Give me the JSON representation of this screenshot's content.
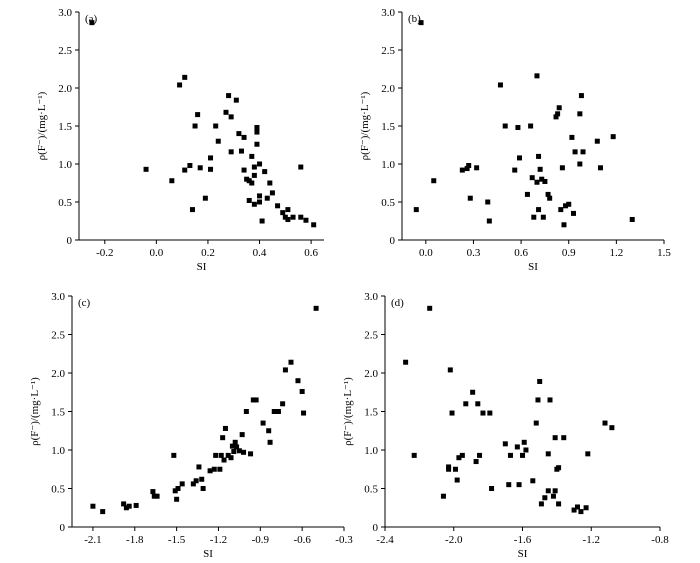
{
  "chart_data": [
    {
      "type": "scatter",
      "panel_label": "(a)",
      "xlabel": "SI",
      "ylabel": "ρ(F⁻)/(mg·L⁻¹)",
      "xlim": [
        -0.3,
        0.65
      ],
      "ylim": [
        0,
        3.0
      ],
      "xticks": [
        -0.2,
        0.0,
        0.2,
        0.4,
        0.6
      ],
      "xtick_labels": [
        "-0.2",
        "0.0",
        "0.2",
        "0.4",
        "0.6"
      ],
      "yticks": [
        0,
        0.5,
        1.0,
        1.5,
        2.0,
        2.5,
        3.0
      ],
      "ytick_labels": [
        "0",
        "0.5",
        "1.0",
        "1.5",
        "2.0",
        "2.5",
        "3.0"
      ],
      "points": [
        [
          -0.25,
          2.86
        ],
        [
          -0.04,
          0.93
        ],
        [
          0.06,
          0.78
        ],
        [
          0.09,
          2.04
        ],
        [
          0.11,
          2.14
        ],
        [
          0.11,
          0.92
        ],
        [
          0.13,
          0.98
        ],
        [
          0.14,
          0.4
        ],
        [
          0.15,
          1.5
        ],
        [
          0.16,
          1.65
        ],
        [
          0.17,
          0.95
        ],
        [
          0.19,
          0.55
        ],
        [
          0.21,
          0.93
        ],
        [
          0.21,
          1.08
        ],
        [
          0.23,
          1.5
        ],
        [
          0.24,
          1.3
        ],
        [
          0.27,
          1.68
        ],
        [
          0.28,
          1.9
        ],
        [
          0.29,
          1.16
        ],
        [
          0.29,
          1.62
        ],
        [
          0.31,
          1.84
        ],
        [
          0.32,
          1.4
        ],
        [
          0.33,
          1.17
        ],
        [
          0.34,
          1.35
        ],
        [
          0.34,
          0.92
        ],
        [
          0.35,
          0.8
        ],
        [
          0.36,
          0.78
        ],
        [
          0.36,
          0.52
        ],
        [
          0.37,
          1.1
        ],
        [
          0.37,
          0.75
        ],
        [
          0.38,
          0.96
        ],
        [
          0.38,
          0.85
        ],
        [
          0.38,
          0.47
        ],
        [
          0.39,
          1.48
        ],
        [
          0.39,
          1.42
        ],
        [
          0.39,
          1.26
        ],
        [
          0.4,
          1.0
        ],
        [
          0.4,
          0.58
        ],
        [
          0.4,
          0.5
        ],
        [
          0.41,
          0.25
        ],
        [
          0.42,
          0.9
        ],
        [
          0.43,
          0.55
        ],
        [
          0.44,
          0.75
        ],
        [
          0.45,
          0.62
        ],
        [
          0.47,
          0.45
        ],
        [
          0.49,
          0.36
        ],
        [
          0.5,
          0.3
        ],
        [
          0.51,
          0.27
        ],
        [
          0.51,
          0.4
        ],
        [
          0.53,
          0.3
        ],
        [
          0.56,
          0.96
        ],
        [
          0.56,
          0.3
        ],
        [
          0.58,
          0.26
        ],
        [
          0.61,
          0.2
        ]
      ]
    },
    {
      "type": "scatter",
      "panel_label": "(b)",
      "xlabel": "SI",
      "ylabel": "ρ(F⁻)/(mg·L⁻¹)",
      "xlim": [
        -0.15,
        1.5
      ],
      "ylim": [
        0,
        3.0
      ],
      "xticks": [
        0.0,
        0.3,
        0.6,
        0.9,
        1.2,
        1.5
      ],
      "xtick_labels": [
        "0.0",
        "0.3",
        "0.6",
        "0.9",
        "1.2",
        "1.5"
      ],
      "yticks": [
        0,
        0.5,
        1.0,
        1.5,
        2.0,
        2.5,
        3.0
      ],
      "ytick_labels": [
        "0",
        "0.5",
        "1.0",
        "1.5",
        "2.0",
        "2.5",
        "3.0"
      ],
      "points": [
        [
          -0.03,
          2.86
        ],
        [
          -0.06,
          0.4
        ],
        [
          0.05,
          0.78
        ],
        [
          0.23,
          0.92
        ],
        [
          0.26,
          0.94
        ],
        [
          0.27,
          0.98
        ],
        [
          0.28,
          0.55
        ],
        [
          0.32,
          0.95
        ],
        [
          0.39,
          0.5
        ],
        [
          0.4,
          0.25
        ],
        [
          0.47,
          2.04
        ],
        [
          0.5,
          1.5
        ],
        [
          0.56,
          0.92
        ],
        [
          0.58,
          1.48
        ],
        [
          0.59,
          1.08
        ],
        [
          0.64,
          0.6
        ],
        [
          0.66,
          1.5
        ],
        [
          0.67,
          0.82
        ],
        [
          0.68,
          0.3
        ],
        [
          0.7,
          2.16
        ],
        [
          0.7,
          0.76
        ],
        [
          0.71,
          1.1
        ],
        [
          0.71,
          0.4
        ],
        [
          0.72,
          0.93
        ],
        [
          0.73,
          0.8
        ],
        [
          0.74,
          0.3
        ],
        [
          0.75,
          0.77
        ],
        [
          0.77,
          0.6
        ],
        [
          0.78,
          0.55
        ],
        [
          0.82,
          1.62
        ],
        [
          0.83,
          1.66
        ],
        [
          0.84,
          1.74
        ],
        [
          0.85,
          0.4
        ],
        [
          0.86,
          0.95
        ],
        [
          0.87,
          0.2
        ],
        [
          0.88,
          0.45
        ],
        [
          0.9,
          0.47
        ],
        [
          0.92,
          1.35
        ],
        [
          0.93,
          0.35
        ],
        [
          0.94,
          1.16
        ],
        [
          0.97,
          1.0
        ],
        [
          0.97,
          1.66
        ],
        [
          0.98,
          1.9
        ],
        [
          0.99,
          1.16
        ],
        [
          1.08,
          1.3
        ],
        [
          1.1,
          0.95
        ],
        [
          1.18,
          1.36
        ],
        [
          1.3,
          0.27
        ]
      ]
    },
    {
      "type": "scatter",
      "panel_label": "(c)",
      "xlabel": "SI",
      "ylabel": "ρ(F⁻)/(mg·L⁻¹)",
      "xlim": [
        -2.25,
        -0.3
      ],
      "ylim": [
        0,
        3.0
      ],
      "xticks": [
        -2.1,
        -1.8,
        -1.5,
        -1.2,
        -0.9,
        -0.6,
        -0.3
      ],
      "xtick_labels": [
        "-2.1",
        "-1.8",
        "-1.5",
        "-1.2",
        "-0.9",
        "-0.6",
        "-0.3"
      ],
      "yticks": [
        0,
        0.5,
        1.0,
        1.5,
        2.0,
        2.5,
        3.0
      ],
      "ytick_labels": [
        "0",
        "0.5",
        "1.0",
        "1.5",
        "2.0",
        "2.5",
        "3.0"
      ],
      "points": [
        [
          -2.1,
          0.27
        ],
        [
          -2.03,
          0.2
        ],
        [
          -1.88,
          0.3
        ],
        [
          -1.86,
          0.25
        ],
        [
          -1.84,
          0.27
        ],
        [
          -1.79,
          0.28
        ],
        [
          -1.67,
          0.46
        ],
        [
          -1.66,
          0.4
        ],
        [
          -1.64,
          0.4
        ],
        [
          -1.52,
          0.93
        ],
        [
          -1.51,
          0.47
        ],
        [
          -1.5,
          0.36
        ],
        [
          -1.49,
          0.5
        ],
        [
          -1.46,
          0.56
        ],
        [
          -1.38,
          0.56
        ],
        [
          -1.36,
          0.6
        ],
        [
          -1.34,
          0.78
        ],
        [
          -1.32,
          0.62
        ],
        [
          -1.31,
          0.5
        ],
        [
          -1.26,
          0.73
        ],
        [
          -1.23,
          0.75
        ],
        [
          -1.22,
          0.93
        ],
        [
          -1.19,
          0.75
        ],
        [
          -1.18,
          0.93
        ],
        [
          -1.17,
          1.16
        ],
        [
          -1.16,
          0.87
        ],
        [
          -1.15,
          1.28
        ],
        [
          -1.13,
          0.93
        ],
        [
          -1.11,
          0.9
        ],
        [
          -1.1,
          1.05
        ],
        [
          -1.09,
          0.98
        ],
        [
          -1.08,
          1.1
        ],
        [
          -1.07,
          1.04
        ],
        [
          -1.05,
          0.99
        ],
        [
          -1.03,
          1.2
        ],
        [
          -1.02,
          0.97
        ],
        [
          -1.0,
          1.5
        ],
        [
          -0.97,
          0.95
        ],
        [
          -0.95,
          1.65
        ],
        [
          -0.93,
          1.65
        ],
        [
          -0.88,
          1.35
        ],
        [
          -0.84,
          1.25
        ],
        [
          -0.83,
          1.1
        ],
        [
          -0.8,
          1.5
        ],
        [
          -0.77,
          1.5
        ],
        [
          -0.74,
          1.6
        ],
        [
          -0.72,
          2.04
        ],
        [
          -0.68,
          2.14
        ],
        [
          -0.63,
          1.9
        ],
        [
          -0.6,
          1.76
        ],
        [
          -0.59,
          1.48
        ],
        [
          -0.5,
          2.84
        ]
      ]
    },
    {
      "type": "scatter",
      "panel_label": "(d)",
      "xlabel": "SI",
      "ylabel": "ρ(F⁻)/(mg·L⁻¹)",
      "xlim": [
        -2.4,
        -0.8
      ],
      "ylim": [
        0,
        3.0
      ],
      "xticks": [
        -2.4,
        -2.0,
        -1.6,
        -1.2,
        -0.8
      ],
      "xtick_labels": [
        "-2.4",
        "-2.0",
        "-1.6",
        "-1.2",
        "-0.8"
      ],
      "yticks": [
        0,
        0.5,
        1.0,
        1.5,
        2.0,
        2.5,
        3.0
      ],
      "ytick_labels": [
        "0",
        "0.5",
        "1.0",
        "1.5",
        "2.0",
        "2.5",
        "3.0"
      ],
      "points": [
        [
          -2.28,
          2.14
        ],
        [
          -2.23,
          0.93
        ],
        [
          -2.14,
          2.84
        ],
        [
          -2.06,
          0.4
        ],
        [
          -2.03,
          0.75
        ],
        [
          -2.03,
          0.78
        ],
        [
          -2.02,
          2.04
        ],
        [
          -2.01,
          1.48
        ],
        [
          -1.99,
          0.75
        ],
        [
          -1.98,
          0.61
        ],
        [
          -1.97,
          0.9
        ],
        [
          -1.95,
          0.93
        ],
        [
          -1.93,
          1.6
        ],
        [
          -1.89,
          1.75
        ],
        [
          -1.87,
          0.85
        ],
        [
          -1.86,
          1.6
        ],
        [
          -1.85,
          0.93
        ],
        [
          -1.83,
          1.48
        ],
        [
          -1.79,
          1.48
        ],
        [
          -1.78,
          0.5
        ],
        [
          -1.7,
          1.08
        ],
        [
          -1.68,
          0.55
        ],
        [
          -1.67,
          0.93
        ],
        [
          -1.63,
          1.04
        ],
        [
          -1.62,
          0.55
        ],
        [
          -1.6,
          0.93
        ],
        [
          -1.59,
          1.1
        ],
        [
          -1.58,
          1.0
        ],
        [
          -1.54,
          0.6
        ],
        [
          -1.52,
          1.35
        ],
        [
          -1.51,
          1.65
        ],
        [
          -1.5,
          1.89
        ],
        [
          -1.49,
          0.3
        ],
        [
          -1.47,
          0.38
        ],
        [
          -1.45,
          0.47
        ],
        [
          -1.45,
          0.95
        ],
        [
          -1.44,
          1.65
        ],
        [
          -1.42,
          0.4
        ],
        [
          -1.41,
          0.47
        ],
        [
          -1.41,
          1.16
        ],
        [
          -1.4,
          0.75
        ],
        [
          -1.39,
          0.77
        ],
        [
          -1.39,
          0.3
        ],
        [
          -1.36,
          1.16
        ],
        [
          -1.3,
          0.22
        ],
        [
          -1.28,
          0.26
        ],
        [
          -1.26,
          0.2
        ],
        [
          -1.23,
          0.25
        ],
        [
          -1.22,
          0.95
        ],
        [
          -1.12,
          1.35
        ],
        [
          -1.08,
          1.29
        ]
      ]
    }
  ]
}
